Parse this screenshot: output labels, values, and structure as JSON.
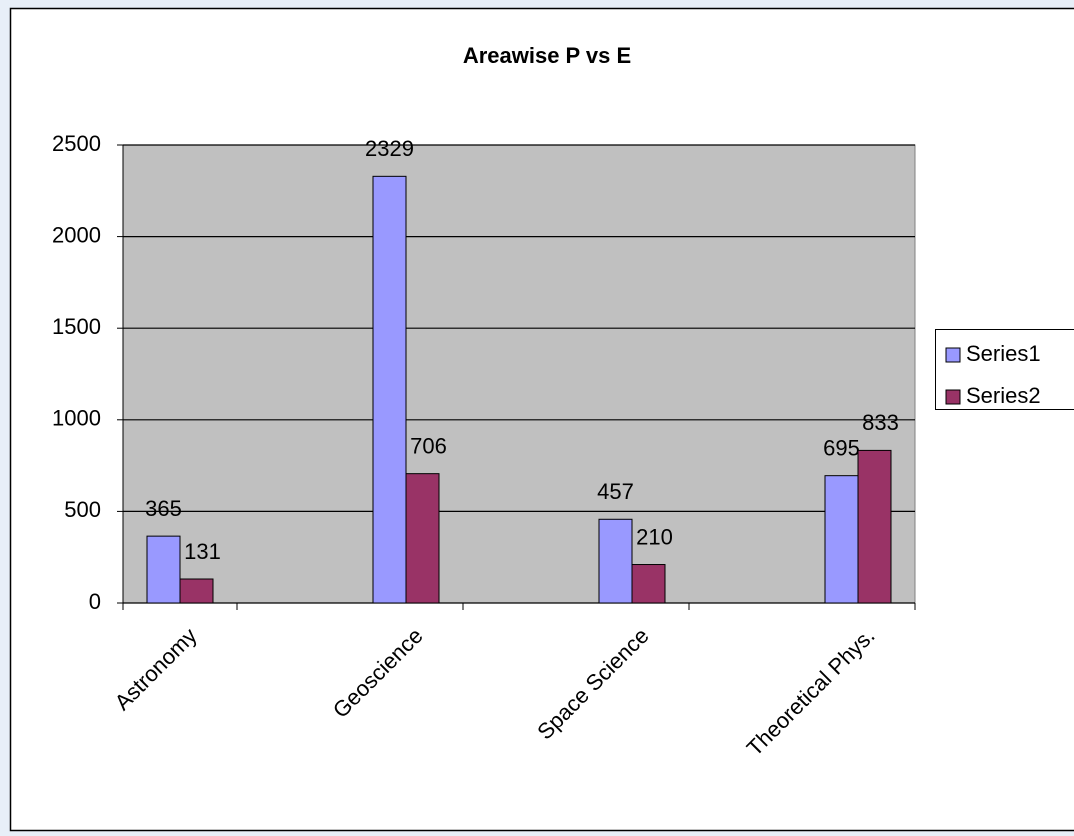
{
  "chart_data": {
    "type": "bar",
    "title": "Areawise P vs E",
    "categories": [
      "Astronomy",
      "Geoscience",
      "Space Science",
      "Theoretical Phys."
    ],
    "series": [
      {
        "name": "Series1",
        "color": "#9999ff",
        "values": [
          365,
          2329,
          457,
          695
        ]
      },
      {
        "name": "Series2",
        "color": "#993366",
        "values": [
          131,
          706,
          210,
          833
        ]
      }
    ],
    "ylim": [
      0,
      2500
    ],
    "yticks": [
      0,
      500,
      1000,
      1500,
      2000,
      2500
    ],
    "grid": true,
    "legend": "right"
  }
}
